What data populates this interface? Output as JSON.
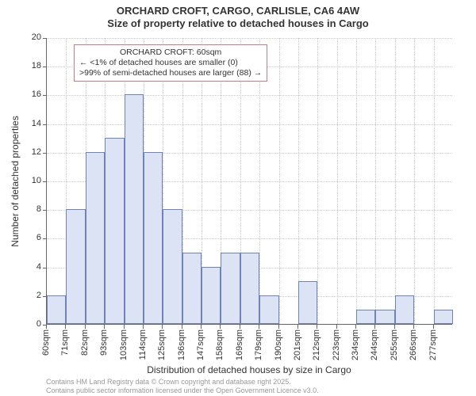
{
  "title": {
    "line1": "ORCHARD CROFT, CARGO, CARLISLE, CA6 4AW",
    "line2": "Size of property relative to detached houses in Cargo",
    "fontsize": 13,
    "color": "#333333"
  },
  "chart": {
    "type": "histogram",
    "background_color": "#ffffff",
    "grid_color": "#cccccc",
    "axis_color": "#666666",
    "ylabel": "Number of detached properties",
    "xlabel": "Distribution of detached houses by size in Cargo",
    "label_fontsize": 12,
    "tick_fontsize": 11,
    "ylim": [
      0,
      20
    ],
    "ytick_step": 2,
    "yticks": [
      0,
      2,
      4,
      6,
      8,
      10,
      12,
      14,
      16,
      18,
      20
    ],
    "xticks": [
      "60sqm",
      "71sqm",
      "82sqm",
      "93sqm",
      "103sqm",
      "114sqm",
      "125sqm",
      "136sqm",
      "147sqm",
      "158sqm",
      "169sqm",
      "179sqm",
      "190sqm",
      "201sqm",
      "212sqm",
      "223sqm",
      "234sqm",
      "244sqm",
      "255sqm",
      "266sqm",
      "277sqm"
    ],
    "bar_fill": "#dbe3f4",
    "bar_stroke": "#6e84b9",
    "bar_width": 1.0,
    "values": [
      2,
      8,
      12,
      13,
      16,
      12,
      8,
      5,
      4,
      5,
      5,
      2,
      0,
      3,
      0,
      0,
      1,
      1,
      2,
      0,
      1
    ],
    "annotation": {
      "title": "ORCHARD CROFT: 60sqm",
      "line1": "← <1% of detached houses are smaller (0)",
      "line2": ">99% of semi-detached houses are larger (88) →",
      "border_color": "#c08080",
      "fontsize": 10.5
    }
  },
  "footer": {
    "line1": "Contains HM Land Registry data © Crown copyright and database right 2025.",
    "line2": "Contains public sector information licensed under the Open Government Licence v3.0.",
    "color": "#999999",
    "fontsize": 9
  }
}
